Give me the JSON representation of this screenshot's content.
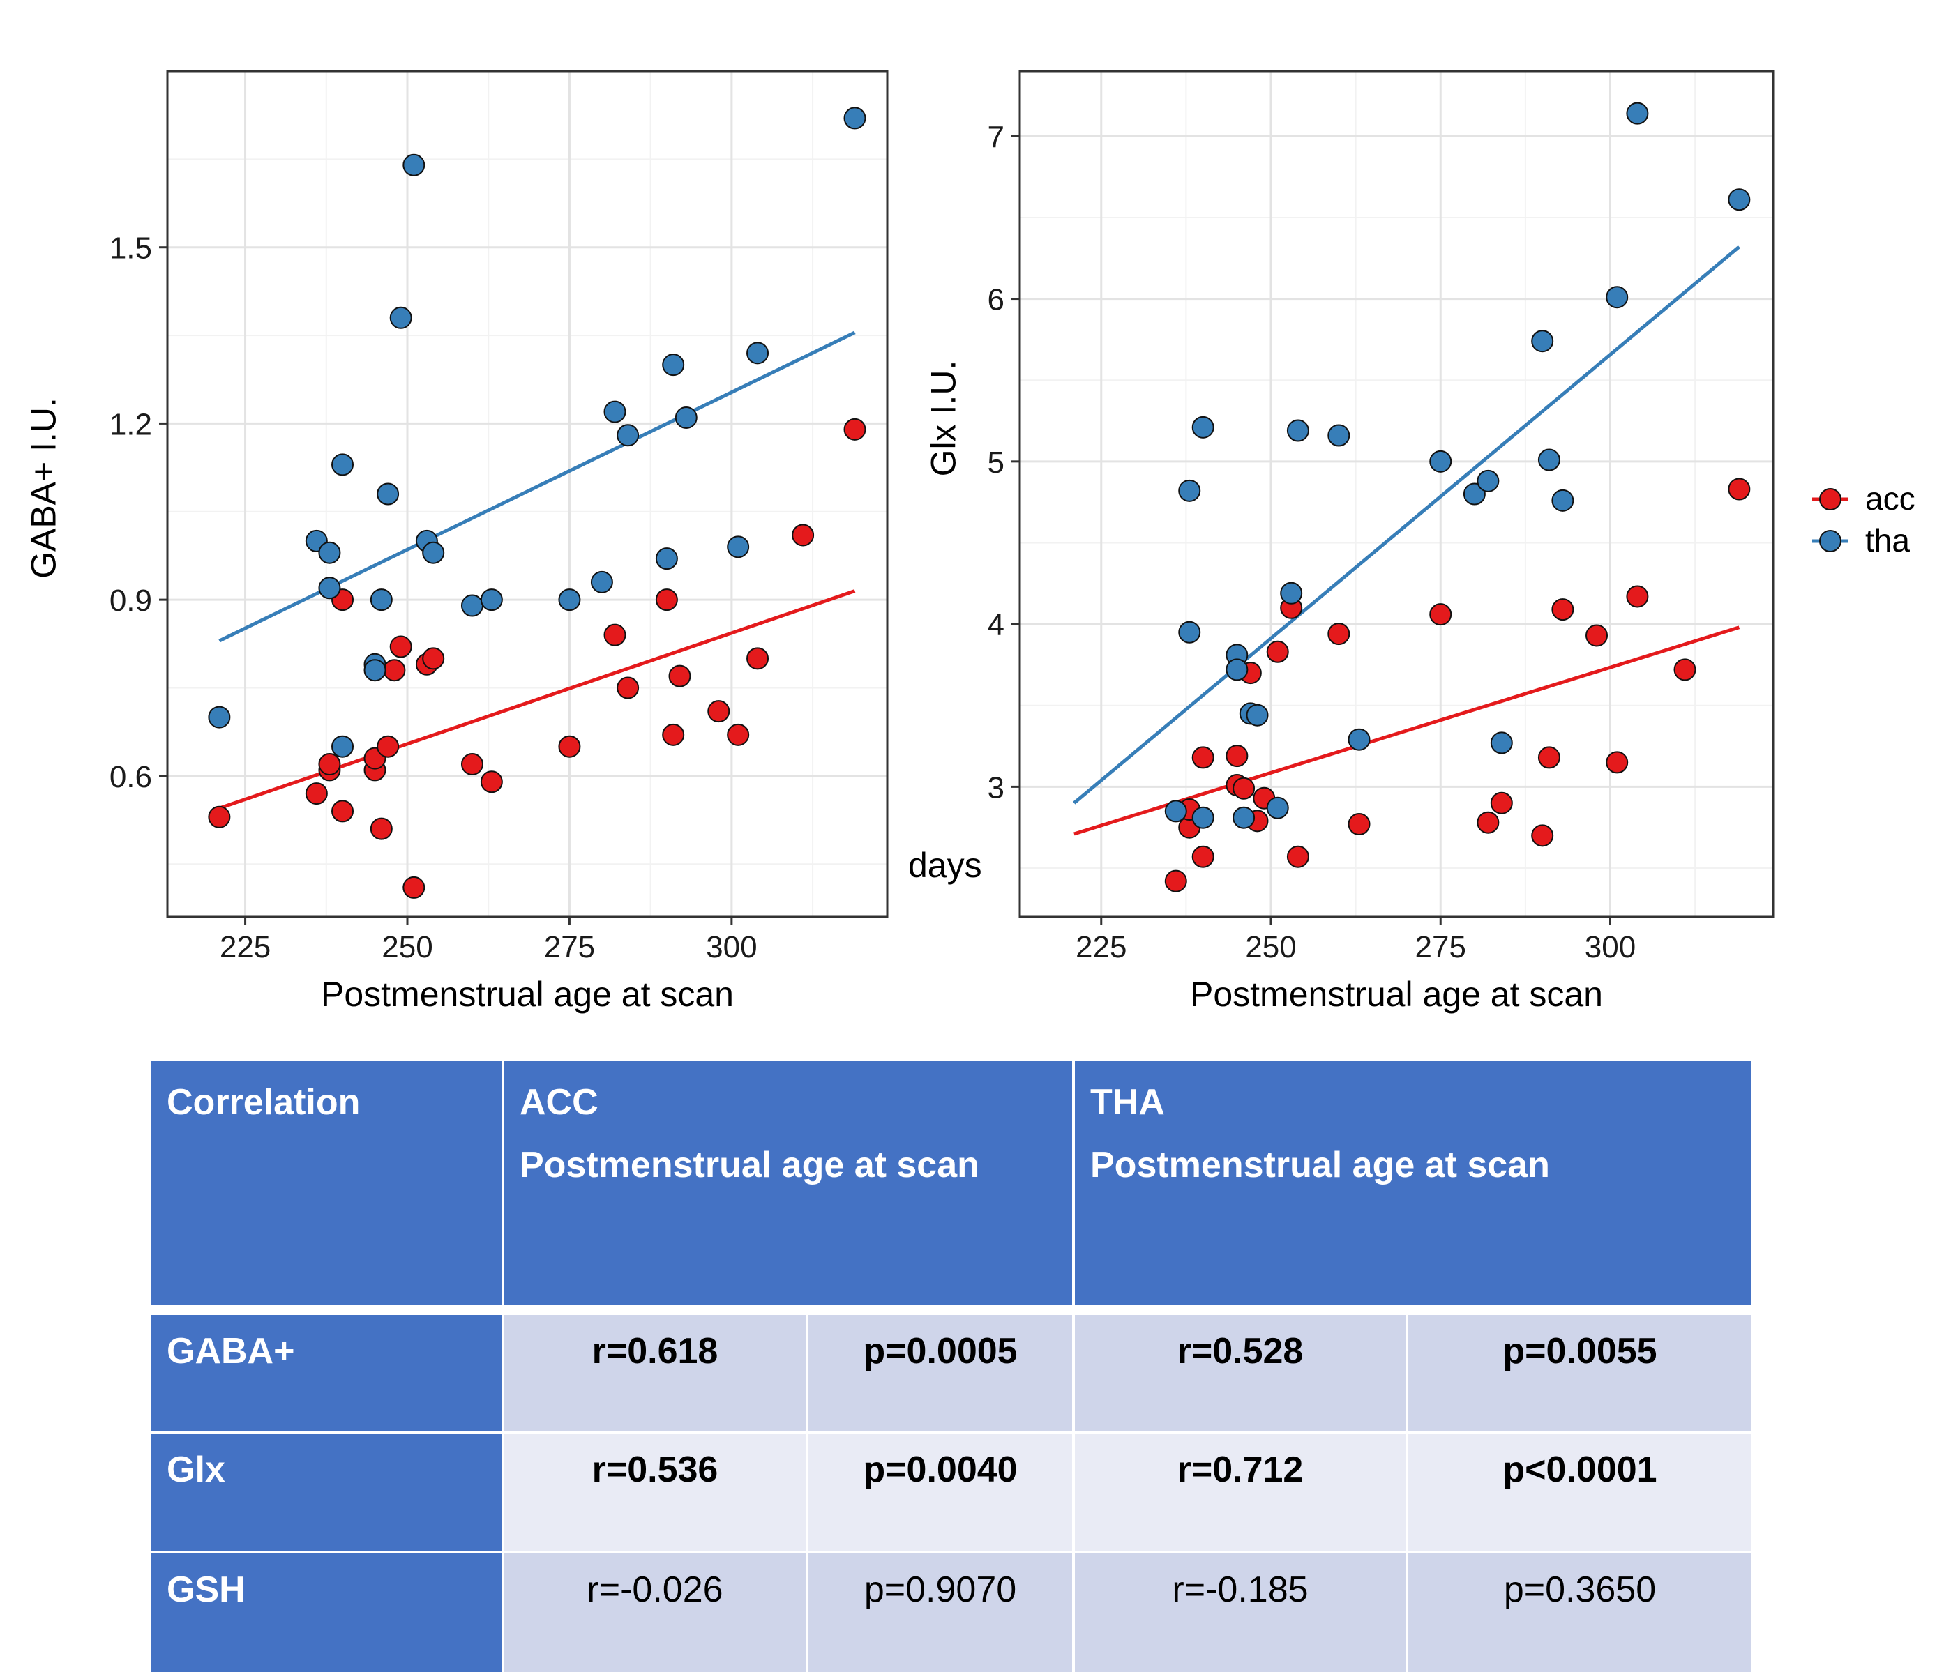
{
  "chart_data": [
    {
      "type": "scatter",
      "title": "",
      "xlabel": "Postmenstrual age at scan",
      "ylabel": "GABA+ I.U.",
      "xlim": [
        213,
        324
      ],
      "ylim": [
        0.36,
        1.8
      ],
      "xticks": [
        225,
        250,
        275,
        300
      ],
      "yticks": [
        0.6,
        0.9,
        1.2,
        1.5
      ],
      "xtick_labels": [
        "225",
        "250",
        "275",
        "300"
      ],
      "ytick_labels": [
        "0.6",
        "0.9",
        "1.2",
        "1.5"
      ],
      "series": [
        {
          "name": "acc",
          "color": "#E41A1C",
          "points": [
            [
              221,
              0.53
            ],
            [
              236,
              0.57
            ],
            [
              238,
              0.61
            ],
            [
              238,
              0.62
            ],
            [
              240,
              0.54
            ],
            [
              240,
              0.9
            ],
            [
              245,
              0.61
            ],
            [
              245,
              0.63
            ],
            [
              246,
              0.51
            ],
            [
              247,
              0.65
            ],
            [
              248,
              0.78
            ],
            [
              249,
              0.82
            ],
            [
              251,
              0.41
            ],
            [
              253,
              0.79
            ],
            [
              254,
              0.8
            ],
            [
              260,
              0.62
            ],
            [
              263,
              0.59
            ],
            [
              275,
              0.65
            ],
            [
              282,
              0.84
            ],
            [
              284,
              0.75
            ],
            [
              290,
              0.9
            ],
            [
              291,
              0.67
            ],
            [
              292,
              0.77
            ],
            [
              298,
              0.71
            ],
            [
              301,
              0.67
            ],
            [
              304,
              0.8
            ],
            [
              311,
              1.01
            ],
            [
              319,
              1.19
            ]
          ],
          "fit": [
            [
              221,
              0.545
            ],
            [
              319,
              0.915
            ]
          ]
        },
        {
          "name": "tha",
          "color": "#377EB8",
          "points": [
            [
              221,
              0.7
            ],
            [
              236,
              1.0
            ],
            [
              238,
              0.98
            ],
            [
              238,
              0.92
            ],
            [
              240,
              1.13
            ],
            [
              240,
              0.65
            ],
            [
              245,
              0.79
            ],
            [
              245,
              0.78
            ],
            [
              246,
              0.9
            ],
            [
              247,
              1.08
            ],
            [
              249,
              1.38
            ],
            [
              251,
              1.64
            ],
            [
              253,
              1.0
            ],
            [
              254,
              0.98
            ],
            [
              260,
              0.89
            ],
            [
              263,
              0.9
            ],
            [
              275,
              0.9
            ],
            [
              280,
              0.93
            ],
            [
              282,
              1.22
            ],
            [
              284,
              1.18
            ],
            [
              290,
              0.97
            ],
            [
              291,
              1.3
            ],
            [
              293,
              1.21
            ],
            [
              301,
              0.99
            ],
            [
              304,
              1.32
            ],
            [
              319,
              1.72
            ]
          ],
          "fit": [
            [
              221,
              0.83
            ],
            [
              319,
              1.355
            ]
          ]
        }
      ]
    },
    {
      "type": "scatter",
      "title": "",
      "xlabel": "Postmenstrual age at scan",
      "ylabel": "Glx I.U.",
      "xlim": [
        213,
        324
      ],
      "ylim": [
        2.2,
        7.4
      ],
      "xticks": [
        225,
        250,
        275,
        300
      ],
      "yticks": [
        3,
        4,
        5,
        6,
        7
      ],
      "xtick_labels": [
        "225",
        "250",
        "275",
        "300"
      ],
      "ytick_labels": [
        "3",
        "4",
        "5",
        "6",
        "7"
      ],
      "series": [
        {
          "name": "acc",
          "color": "#E41A1C",
          "points": [
            [
              236,
              2.42
            ],
            [
              238,
              2.75
            ],
            [
              238,
              2.86
            ],
            [
              240,
              3.18
            ],
            [
              240,
              2.57
            ],
            [
              245,
              3.01
            ],
            [
              245,
              3.19
            ],
            [
              246,
              2.99
            ],
            [
              247,
              3.7
            ],
            [
              248,
              2.79
            ],
            [
              249,
              2.93
            ],
            [
              251,
              3.83
            ],
            [
              253,
              4.1
            ],
            [
              254,
              2.57
            ],
            [
              260,
              3.94
            ],
            [
              263,
              2.77
            ],
            [
              275,
              4.06
            ],
            [
              282,
              2.78
            ],
            [
              284,
              2.9
            ],
            [
              290,
              2.7
            ],
            [
              291,
              3.18
            ],
            [
              293,
              4.09
            ],
            [
              298,
              3.93
            ],
            [
              301,
              3.15
            ],
            [
              304,
              4.17
            ],
            [
              311,
              3.72
            ],
            [
              319,
              4.83
            ]
          ],
          "fit": [
            [
              221,
              2.71
            ],
            [
              319,
              3.98
            ]
          ]
        },
        {
          "name": "tha",
          "color": "#377EB8",
          "points": [
            [
              236,
              2.85
            ],
            [
              238,
              4.82
            ],
            [
              238,
              3.95
            ],
            [
              240,
              5.21
            ],
            [
              240,
              2.81
            ],
            [
              245,
              3.81
            ],
            [
              245,
              3.72
            ],
            [
              246,
              2.81
            ],
            [
              247,
              3.45
            ],
            [
              248,
              3.44
            ],
            [
              251,
              2.87
            ],
            [
              253,
              4.19
            ],
            [
              254,
              5.19
            ],
            [
              260,
              5.16
            ],
            [
              263,
              3.29
            ],
            [
              275,
              5.0
            ],
            [
              280,
              4.8
            ],
            [
              282,
              4.88
            ],
            [
              284,
              3.27
            ],
            [
              290,
              5.74
            ],
            [
              291,
              5.01
            ],
            [
              293,
              4.76
            ],
            [
              301,
              6.01
            ],
            [
              304,
              7.14
            ],
            [
              319,
              6.61
            ]
          ],
          "fit": [
            [
              221,
              2.9
            ],
            [
              319,
              6.32
            ]
          ]
        }
      ]
    }
  ],
  "legend": {
    "entries": [
      {
        "label": "acc",
        "color": "#E41A1C"
      },
      {
        "label": "tha",
        "color": "#377EB8"
      }
    ]
  },
  "annotation": {
    "days": "days"
  },
  "table": {
    "header": {
      "correlation": "Correlation",
      "acc_title": "ACC",
      "acc_sub": "Postmenstrual age at scan",
      "tha_title": "THA",
      "tha_sub": "Postmenstrual age at scan"
    },
    "rows": [
      {
        "label": "GABA+",
        "acc_r": "r=0.618",
        "acc_p": "p=0.0005",
        "tha_r": "r=0.528",
        "tha_p": "p=0.0055"
      },
      {
        "label": "Glx",
        "acc_r": "r=0.536",
        "acc_p": "p=0.0040",
        "tha_r": "r=0.712",
        "tha_p": "p<0.0001"
      },
      {
        "label": "GSH",
        "acc_r": "r=-0.026",
        "acc_p": "p=0.9070",
        "tha_r": "r=-0.185",
        "tha_p": "p=0.3650"
      }
    ]
  }
}
